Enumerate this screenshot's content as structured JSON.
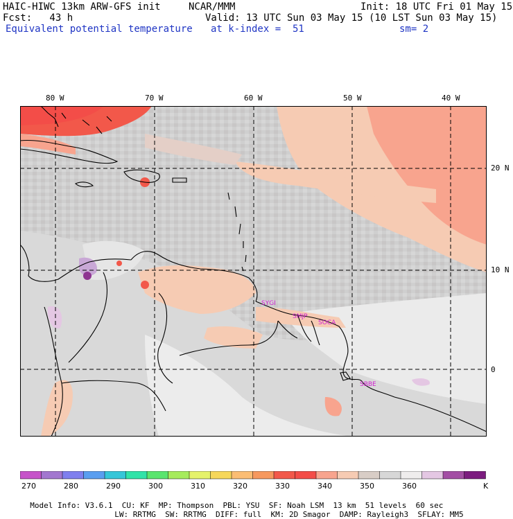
{
  "header": {
    "model_line": "HAIC-HIWC 13km ARW-GFS init",
    "org": "NCAR/MMM",
    "init": "Init: 18 UTC Fri 01 May 15",
    "fcst": "Fcst:   43 h",
    "valid": "Valid: 13 UTC Sun 03 May 15 (10 LST Sun 03 May 15)",
    "field": "Equivalent potential temperature",
    "level": "at k-index =  51",
    "smooth": "sm= 2"
  },
  "map": {
    "lon_labels": [
      "80 W",
      "70 W",
      "60 W",
      "50 W",
      "40 W"
    ],
    "lat_labels": [
      "20 N",
      "10 N",
      "0"
    ],
    "stations": [
      "SYGI",
      "SMJP",
      "SOCA",
      "SBBE"
    ]
  },
  "colorbar": {
    "colors": [
      "#c653c9",
      "#a277cf",
      "#7f7fee",
      "#5a9ef0",
      "#36c6d8",
      "#31e3a8",
      "#5ae56e",
      "#a6eb5c",
      "#e5f26b",
      "#f6d75b",
      "#fbbd74",
      "#f6985e",
      "#f2584a",
      "#f34d48",
      "#f8a48e",
      "#f6cbb3",
      "#d8cdc6",
      "#d7d7d7",
      "#efeded",
      "#e4c7e3",
      "#a34ea4",
      "#7c1c7f"
    ],
    "tick_labels": [
      "270",
      "280",
      "290",
      "300",
      "310",
      "320",
      "330",
      "340",
      "350",
      "360"
    ],
    "unit": "K"
  },
  "footer": {
    "line1": [
      "Model Info: V3.6.1",
      "CU: KF",
      "MP: Thompson",
      "PBL: YSU",
      "SF: Noah LSM",
      "13 km",
      "51 levels",
      "60 sec"
    ],
    "line2": [
      "LW: RRTMG",
      "SW: RRTMG",
      "DIFF: full",
      "KM: 2D Smagor",
      "DAMP: Rayleigh3",
      "SFLAY: MM5"
    ]
  }
}
